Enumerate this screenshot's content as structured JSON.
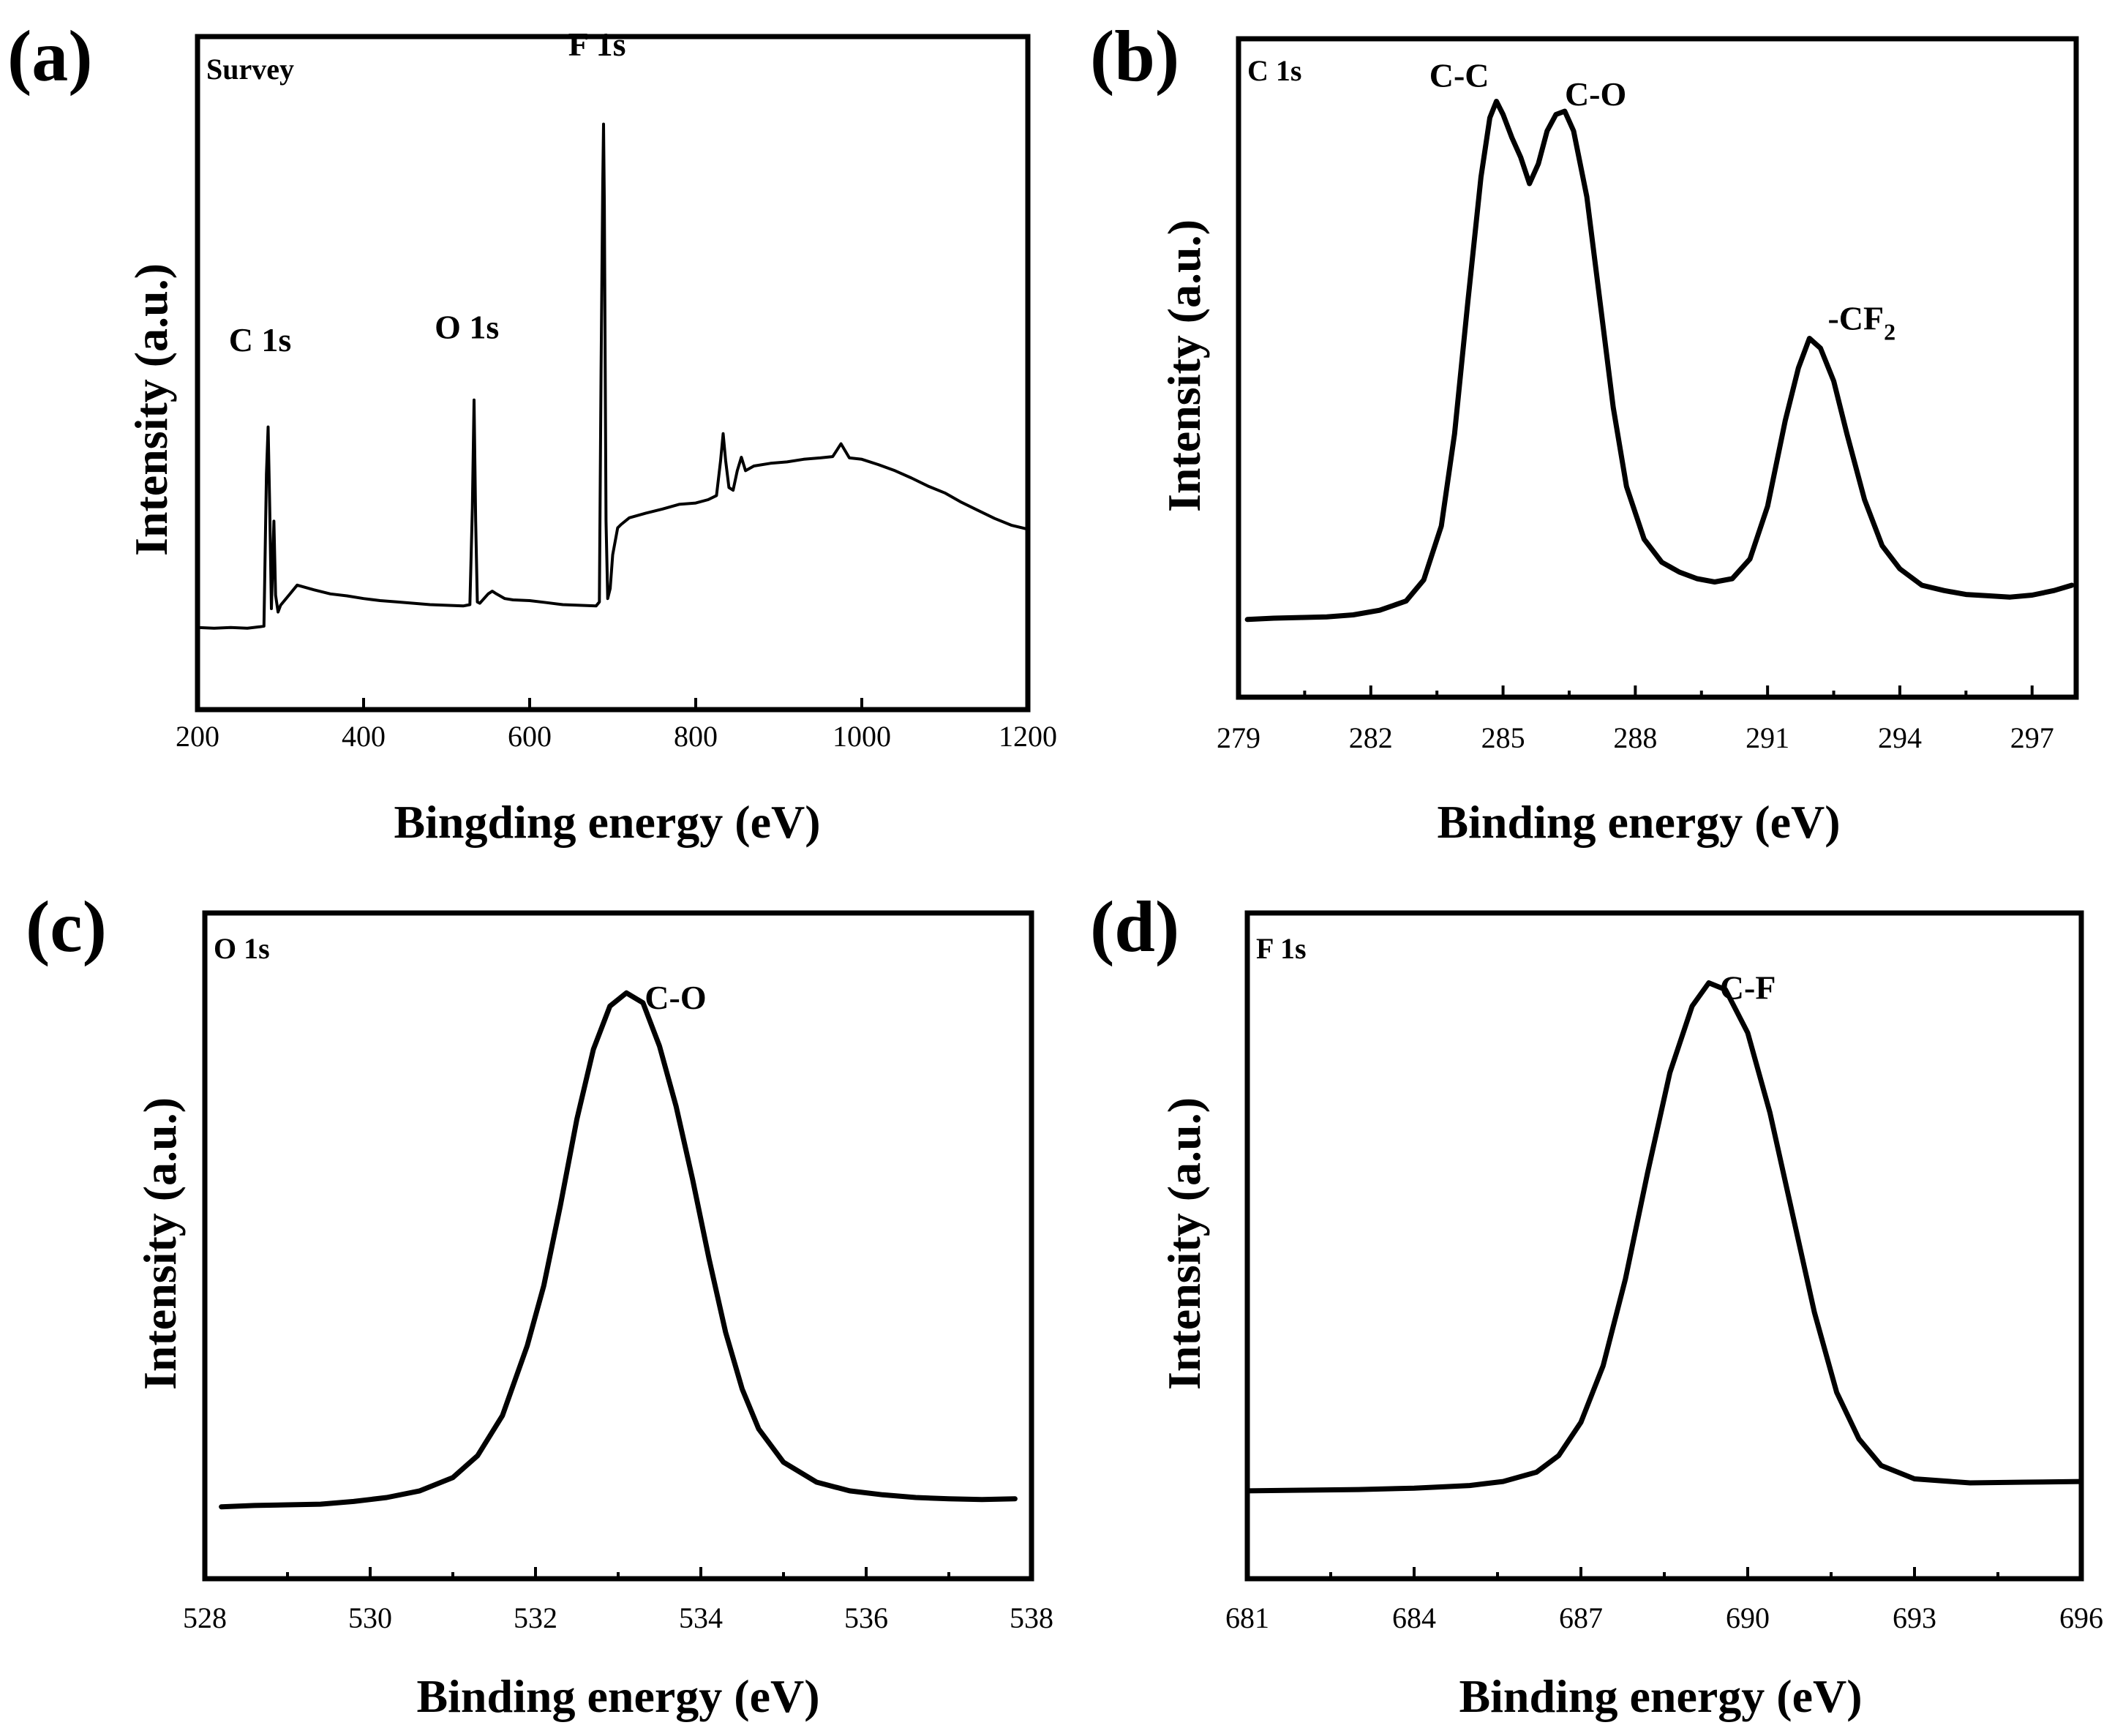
{
  "figure": {
    "colors": {
      "line": "#000000",
      "frame": "#000000",
      "background": "#ffffff"
    }
  },
  "chart_data": [
    {
      "id": "a",
      "panel_label": "(a)",
      "type": "line",
      "title": "Survey",
      "xlabel": "Bingding energy (eV)",
      "ylabel": "Intensity (a.u.)",
      "xlim": [
        200,
        1200
      ],
      "ylim": [
        0,
        100
      ],
      "xticks": [
        200,
        400,
        600,
        800,
        1000,
        1200
      ],
      "xtick_labels": [
        "200",
        "400",
        "600",
        "800",
        "1000",
        "1200"
      ],
      "minor_ticks": false,
      "grid": false,
      "line_width": 4,
      "series": [
        {
          "name": "Survey",
          "points": [
            [
              200,
              12.2
            ],
            [
              220,
              12.1
            ],
            [
              240,
              12.2
            ],
            [
              260,
              12.1
            ],
            [
              275,
              12.3
            ],
            [
              280,
              12.4
            ],
            [
              283,
              35
            ],
            [
              285,
              42
            ],
            [
              287,
              30
            ],
            [
              289,
              15
            ],
            [
              292,
              28
            ],
            [
              294,
              17
            ],
            [
              297,
              14.5
            ],
            [
              300,
              15.5
            ],
            [
              310,
              17
            ],
            [
              320,
              18.5
            ],
            [
              340,
              17.8
            ],
            [
              360,
              17.2
            ],
            [
              380,
              16.9
            ],
            [
              400,
              16.5
            ],
            [
              420,
              16.2
            ],
            [
              440,
              16
            ],
            [
              460,
              15.8
            ],
            [
              480,
              15.6
            ],
            [
              500,
              15.5
            ],
            [
              520,
              15.4
            ],
            [
              528,
              15.6
            ],
            [
              531,
              30
            ],
            [
              533,
              46
            ],
            [
              535,
              28
            ],
            [
              537,
              16
            ],
            [
              540,
              15.8
            ],
            [
              550,
              17.2
            ],
            [
              555,
              17.6
            ],
            [
              560,
              17.2
            ],
            [
              570,
              16.5
            ],
            [
              580,
              16.3
            ],
            [
              600,
              16.2
            ],
            [
              620,
              15.9
            ],
            [
              640,
              15.6
            ],
            [
              660,
              15.5
            ],
            [
              680,
              15.4
            ],
            [
              684,
              16
            ],
            [
              686,
              50
            ],
            [
              688,
              78
            ],
            [
              689,
              87
            ],
            [
              690,
              75
            ],
            [
              692,
              28
            ],
            [
              694,
              16.5
            ],
            [
              697,
              18
            ],
            [
              700,
              23
            ],
            [
              706,
              27
            ],
            [
              710,
              27.5
            ],
            [
              720,
              28.5
            ],
            [
              740,
              29.2
            ],
            [
              760,
              29.8
            ],
            [
              780,
              30.5
            ],
            [
              800,
              30.7
            ],
            [
              815,
              31.2
            ],
            [
              825,
              31.8
            ],
            [
              830,
              37
            ],
            [
              833,
              41
            ],
            [
              836,
              37
            ],
            [
              840,
              33
            ],
            [
              845,
              32.6
            ],
            [
              850,
              35.5
            ],
            [
              855,
              37.5
            ],
            [
              860,
              35.5
            ],
            [
              870,
              36.2
            ],
            [
              890,
              36.6
            ],
            [
              910,
              36.8
            ],
            [
              930,
              37.2
            ],
            [
              950,
              37.4
            ],
            [
              965,
              37.6
            ],
            [
              975,
              39.5
            ],
            [
              985,
              37.4
            ],
            [
              1000,
              37.2
            ],
            [
              1020,
              36.4
            ],
            [
              1040,
              35.5
            ],
            [
              1060,
              34.4
            ],
            [
              1080,
              33.2
            ],
            [
              1100,
              32.2
            ],
            [
              1120,
              30.8
            ],
            [
              1140,
              29.6
            ],
            [
              1160,
              28.4
            ],
            [
              1180,
              27.4
            ],
            [
              1200,
              26.8
            ]
          ]
        }
      ],
      "annotations": [
        {
          "text": "C 1s",
          "x": 300,
          "y": 50
        },
        {
          "text": "O 1s",
          "x": 535,
          "y": 53
        },
        {
          "text": "F 1s",
          "x": 690,
          "y": 95
        }
      ]
    },
    {
      "id": "b",
      "panel_label": "(b)",
      "type": "line",
      "title": "C 1s",
      "xlabel": "Binding energy (eV)",
      "ylabel": "Intensity (a.u.)",
      "xlim": [
        279,
        298
      ],
      "ylim": [
        0,
        100
      ],
      "xticks": [
        279,
        282,
        285,
        288,
        291,
        294,
        297
      ],
      "xtick_labels": [
        "279",
        "282",
        "285",
        "288",
        "291",
        "294",
        "297"
      ],
      "minor_ticks": true,
      "grid": false,
      "line_width": 7,
      "series": [
        {
          "name": "C 1s",
          "points": [
            [
              279.2,
              11.8
            ],
            [
              279.8,
              12
            ],
            [
              280.4,
              12.1
            ],
            [
              281,
              12.2
            ],
            [
              281.6,
              12.5
            ],
            [
              282.2,
              13.2
            ],
            [
              282.8,
              14.6
            ],
            [
              283.2,
              17.8
            ],
            [
              283.6,
              26
            ],
            [
              283.9,
              40
            ],
            [
              284.2,
              60
            ],
            [
              284.5,
              79
            ],
            [
              284.7,
              88
            ],
            [
              284.85,
              90.5
            ],
            [
              285.0,
              88.5
            ],
            [
              285.2,
              85
            ],
            [
              285.4,
              82
            ],
            [
              285.6,
              78
            ],
            [
              285.8,
              81
            ],
            [
              286.0,
              86
            ],
            [
              286.2,
              88.5
            ],
            [
              286.4,
              89
            ],
            [
              286.6,
              86
            ],
            [
              286.9,
              76
            ],
            [
              287.2,
              60
            ],
            [
              287.5,
              44
            ],
            [
              287.8,
              32
            ],
            [
              288.2,
              24
            ],
            [
              288.6,
              20.5
            ],
            [
              289.0,
              19
            ],
            [
              289.4,
              18
            ],
            [
              289.8,
              17.5
            ],
            [
              290.2,
              18
            ],
            [
              290.6,
              21
            ],
            [
              291.0,
              29
            ],
            [
              291.4,
              42
            ],
            [
              291.7,
              50
            ],
            [
              291.95,
              54.5
            ],
            [
              292.2,
              53
            ],
            [
              292.5,
              48
            ],
            [
              292.8,
              40
            ],
            [
              293.2,
              30
            ],
            [
              293.6,
              23
            ],
            [
              294.0,
              19.5
            ],
            [
              294.5,
              17
            ],
            [
              295,
              16.2
            ],
            [
              295.5,
              15.6
            ],
            [
              296,
              15.4
            ],
            [
              296.5,
              15.2
            ],
            [
              297,
              15.5
            ],
            [
              297.5,
              16.2
            ],
            [
              297.9,
              17
            ]
          ]
        }
      ],
      "annotations": [
        {
          "text": "C-C",
          "x": 284.85,
          "y": 90.5
        },
        {
          "text": "C-O",
          "x": 286.4,
          "y": 89
        },
        {
          "text": "-CF",
          "subscript": "2",
          "x": 292.2,
          "y": 54.5
        }
      ]
    },
    {
      "id": "c",
      "panel_label": "(c)",
      "type": "line",
      "title": "O 1s",
      "xlabel": "Binding energy (eV)",
      "ylabel": "Intensity (a.u.)",
      "xlim": [
        528,
        538
      ],
      "ylim": [
        0,
        100
      ],
      "xticks": [
        528,
        530,
        532,
        534,
        536,
        538
      ],
      "xtick_labels": [
        "528",
        "530",
        "532",
        "534",
        "536",
        "538"
      ],
      "minor_ticks": true,
      "grid": false,
      "line_width": 7,
      "series": [
        {
          "name": "O 1s",
          "points": [
            [
              528.2,
              10.8
            ],
            [
              528.6,
              11
            ],
            [
              529,
              11.1
            ],
            [
              529.4,
              11.2
            ],
            [
              529.8,
              11.6
            ],
            [
              530.2,
              12.2
            ],
            [
              530.6,
              13.2
            ],
            [
              531,
              15.2
            ],
            [
              531.3,
              18.5
            ],
            [
              531.6,
              24.5
            ],
            [
              531.9,
              35
            ],
            [
              532.1,
              44
            ],
            [
              532.3,
              56
            ],
            [
              532.5,
              69
            ],
            [
              532.7,
              79.5
            ],
            [
              532.9,
              86
            ],
            [
              533.1,
              88
            ],
            [
              533.3,
              86.5
            ],
            [
              533.5,
              80
            ],
            [
              533.7,
              71
            ],
            [
              533.9,
              60
            ],
            [
              534.1,
              48
            ],
            [
              534.3,
              37
            ],
            [
              534.5,
              28.5
            ],
            [
              534.7,
              22.5
            ],
            [
              535,
              17.5
            ],
            [
              535.4,
              14.5
            ],
            [
              535.8,
              13.2
            ],
            [
              536.2,
              12.6
            ],
            [
              536.6,
              12.2
            ],
            [
              537,
              12
            ],
            [
              537.4,
              11.9
            ],
            [
              537.8,
              12
            ]
          ]
        }
      ],
      "annotations": [
        {
          "text": "C-O",
          "x": 533.1,
          "y": 88
        }
      ]
    },
    {
      "id": "d",
      "panel_label": "(d)",
      "type": "line",
      "title": "F 1s",
      "xlabel": "Binding energy (eV)",
      "ylabel": "Intensity (a.u.)",
      "xlim": [
        681,
        696
      ],
      "ylim": [
        0,
        100
      ],
      "xticks": [
        681,
        684,
        687,
        690,
        693,
        696
      ],
      "xtick_labels": [
        "681",
        "684",
        "687",
        "690",
        "693",
        "696"
      ],
      "minor_ticks": true,
      "grid": false,
      "line_width": 7,
      "series": [
        {
          "name": "F 1s",
          "points": [
            [
              681,
              13.2
            ],
            [
              682,
              13.3
            ],
            [
              683,
              13.4
            ],
            [
              684,
              13.6
            ],
            [
              685,
              14
            ],
            [
              685.6,
              14.6
            ],
            [
              686.2,
              16
            ],
            [
              686.6,
              18.5
            ],
            [
              687,
              23.5
            ],
            [
              687.4,
              32
            ],
            [
              687.8,
              45
            ],
            [
              688.2,
              61
            ],
            [
              688.6,
              76
            ],
            [
              689,
              86
            ],
            [
              689.3,
              89.5
            ],
            [
              689.6,
              88.5
            ],
            [
              690,
              82
            ],
            [
              690.4,
              70
            ],
            [
              690.8,
              55
            ],
            [
              691.2,
              40
            ],
            [
              691.6,
              28
            ],
            [
              692,
              21
            ],
            [
              692.4,
              17
            ],
            [
              693,
              15
            ],
            [
              694,
              14.4
            ],
            [
              695,
              14.5
            ],
            [
              696,
              14.6
            ]
          ]
        }
      ],
      "annotations": [
        {
          "text": "C-F",
          "x": 689.3,
          "y": 89.5
        }
      ]
    }
  ]
}
